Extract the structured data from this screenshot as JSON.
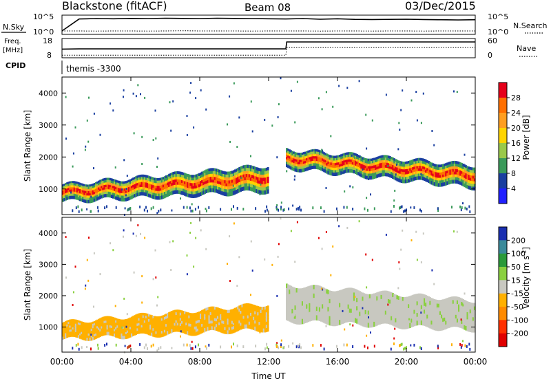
{
  "header": {
    "station": "Blackstone (fitACF)",
    "beam": "Beam 08",
    "date": "03/Dec/2015"
  },
  "chart_data": [
    {
      "type": "line",
      "panel": "noise",
      "left_label": "N.Sky",
      "right_label": "N.Search",
      "left_ticks": [
        "10^5",
        "10^0"
      ],
      "right_ticks": [
        "10^5",
        "10^0"
      ],
      "series": [
        {
          "name": "N.Sky",
          "style": "solid",
          "values": [
            0.18,
            0.8,
            0.82,
            0.81,
            0.83,
            0.82,
            0.84,
            0.83,
            0.82,
            0.84,
            0.83,
            0.82,
            0.81,
            0.8,
            0.82,
            0.79,
            0.81,
            0.78,
            0.77,
            0.78,
            0.79,
            0.77,
            0.76,
            0.75,
            0.76
          ]
        },
        {
          "name": "N.Search",
          "style": "dotted",
          "values": [
            0.18,
            0.18,
            0.17,
            0.18,
            0.18,
            0.17,
            0.18,
            0.19,
            0.18,
            0.18,
            0.18,
            0.17,
            0.18,
            0.18,
            0.18,
            0.17,
            0.18,
            0.18,
            0.17,
            0.18,
            0.18,
            0.17,
            0.18,
            0.18,
            0.18
          ]
        }
      ]
    },
    {
      "type": "line",
      "panel": "frequency",
      "left_label": "Freq.\n[MHz]",
      "left_ticks": [
        "18",
        "8"
      ],
      "right_label": "Nave",
      "right_ticks": [
        "60",
        "0"
      ],
      "series": [
        {
          "name": "Freq.",
          "style": "solid",
          "x": [
            0,
            1,
            13,
            13.05,
            24
          ],
          "values": [
            12.5,
            12.6,
            12.6,
            16.2,
            16.2
          ]
        },
        {
          "name": "Nave",
          "style": "dotted",
          "x": [
            0,
            13,
            13.05,
            24
          ],
          "values": [
            8,
            8,
            32,
            32
          ]
        }
      ]
    },
    {
      "type": "text",
      "panel": "cpid",
      "label": "CPID",
      "program": "themis -3300"
    },
    {
      "type": "heatmap",
      "panel": "power",
      "ylabel": "Slant Range [km]",
      "yticks": [
        "4000",
        "3000",
        "2000",
        "1000"
      ],
      "ylim": [
        200,
        4500
      ],
      "xlim": [
        0,
        24
      ],
      "colorbar_label": "Power [dB]",
      "colorbar_ticks": [
        "28",
        "24",
        "20",
        "16",
        "12",
        "8",
        "4"
      ],
      "colorbar_colors": [
        "#e6001a",
        "#ff6f00",
        "#ff9e20",
        "#ffd400",
        "#9ac94a",
        "#3a9a5a",
        "#1a3fa0",
        "#2020ff"
      ],
      "colorbar_range": [
        0,
        32
      ],
      "bands": [
        {
          "x_start": 0,
          "x_end": 12,
          "range_low": [
            650,
            1000
          ],
          "range_high": [
            1100,
            1700
          ],
          "peak": 26
        },
        {
          "x_start": 13,
          "x_end": 24,
          "range_low": [
            1700,
            1100
          ],
          "range_high": [
            2200,
            1700
          ],
          "peak": 26
        }
      ]
    },
    {
      "type": "heatmap",
      "panel": "velocity",
      "ylabel": "Slant Range [km]",
      "yticks": [
        "4000",
        "3000",
        "2000",
        "1000"
      ],
      "ylim": [
        200,
        4500
      ],
      "xlim": [
        0,
        24
      ],
      "colorbar_label": "Velocity [m s^-1]",
      "colorbar_ticks": [
        "200",
        "100",
        "50",
        "15",
        "-15",
        "-50",
        "-100",
        "-200"
      ],
      "colorbar_colors": [
        "#1a2fb0",
        "#3a8a9a",
        "#2a9a3a",
        "#8ad040",
        "#c8c8c0",
        "#ffb000",
        "#ff8a00",
        "#ff3000",
        "#e00000"
      ],
      "bands": [
        {
          "x_start": 0,
          "x_end": 12,
          "range_low": [
            650,
            1000
          ],
          "range_high": [
            1100,
            1700
          ],
          "color": "#f5b000"
        },
        {
          "x_start": 13,
          "x_end": 24,
          "range_low": [
            1300,
            1000
          ],
          "range_high": [
            2300,
            1800
          ],
          "color": "#c8c8c0"
        }
      ]
    }
  ],
  "xaxis": {
    "ticks": [
      "00:00",
      "04:00",
      "08:00",
      "12:00",
      "16:00",
      "20:00",
      "00:00"
    ],
    "label": "Time UT"
  }
}
